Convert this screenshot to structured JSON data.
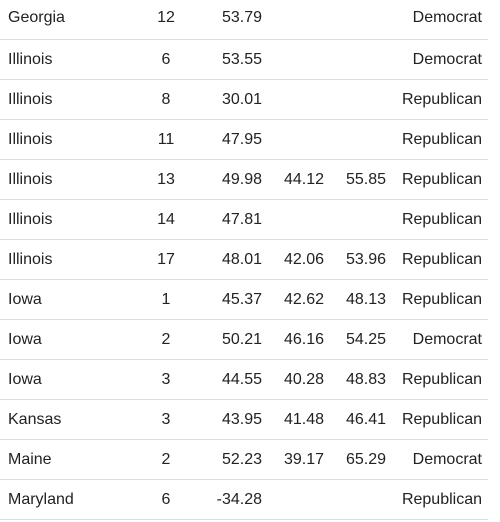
{
  "table": {
    "rows": [
      {
        "state": "Georgia",
        "district": "12",
        "v1": "53.79",
        "v2": "",
        "v3": "",
        "party": "Democrat"
      },
      {
        "state": "Illinois",
        "district": "6",
        "v1": "53.55",
        "v2": "",
        "v3": "",
        "party": "Democrat"
      },
      {
        "state": "Illinois",
        "district": "8",
        "v1": "30.01",
        "v2": "",
        "v3": "",
        "party": "Republican"
      },
      {
        "state": "Illinois",
        "district": "11",
        "v1": "47.95",
        "v2": "",
        "v3": "",
        "party": "Republican"
      },
      {
        "state": "Illinois",
        "district": "13",
        "v1": "49.98",
        "v2": "44.12",
        "v3": "55.85",
        "party": "Republican"
      },
      {
        "state": "Illinois",
        "district": "14",
        "v1": "47.81",
        "v2": "",
        "v3": "",
        "party": "Republican"
      },
      {
        "state": "Illinois",
        "district": "17",
        "v1": "48.01",
        "v2": "42.06",
        "v3": "53.96",
        "party": "Republican"
      },
      {
        "state": "Iowa",
        "district": "1",
        "v1": "45.37",
        "v2": "42.62",
        "v3": "48.13",
        "party": "Republican"
      },
      {
        "state": "Iowa",
        "district": "2",
        "v1": "50.21",
        "v2": "46.16",
        "v3": "54.25",
        "party": "Democrat"
      },
      {
        "state": "Iowa",
        "district": "3",
        "v1": "44.55",
        "v2": "40.28",
        "v3": "48.83",
        "party": "Republican"
      },
      {
        "state": "Kansas",
        "district": "3",
        "v1": "43.95",
        "v2": "41.48",
        "v3": "46.41",
        "party": "Republican"
      },
      {
        "state": "Maine",
        "district": "2",
        "v1": "52.23",
        "v2": "39.17",
        "v3": "65.29",
        "party": "Democrat"
      },
      {
        "state": "Maryland",
        "district": "6",
        "v1": "-34.28",
        "v2": "",
        "v3": "",
        "party": "Republican"
      }
    ]
  }
}
